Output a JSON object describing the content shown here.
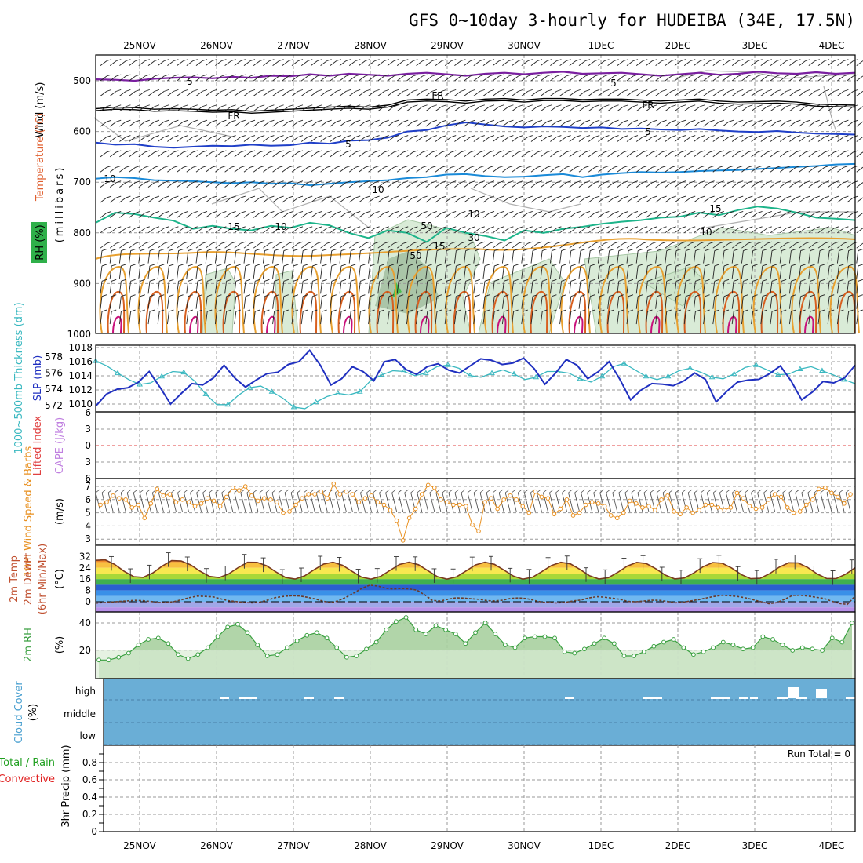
{
  "title": "GFS 0~10day 3-hourly for HUDEIBA (34E, 17.5N)",
  "colors": {
    "frame": "#000000",
    "grid": "#9a9a9a",
    "purple": "#7a1fa0",
    "blue": "#1f3fc8",
    "sky": "#1a8ad8",
    "teal": "#1db48a",
    "orange": "#e8a030",
    "dark_orange": "#d86020",
    "magenta": "#c8107a",
    "rh_fill": "#c9e2c6",
    "rh_dark": "#8aab88",
    "cyan": "#3ab8c0",
    "navy": "#2030c0",
    "lifted": "#e04040",
    "wind_orange": "#e89020",
    "temp_brown": "#7a3a20",
    "rh2m_green": "#3aa040",
    "cloud_blue": "#6aaed6",
    "precip_red": "#e02020",
    "precip_green": "#20a020"
  },
  "chart_data": {
    "type": "line",
    "title": "GFS 0~10day 3-hourly for HUDEIBA (34E, 17.5N)",
    "x_dates": [
      "25NOV",
      "26NOV",
      "27NOV",
      "28NOV",
      "29NOV",
      "30NOV",
      "1DEC",
      "2DEC",
      "3DEC",
      "4DEC"
    ],
    "panels": {
      "upper_air": {
        "ylabel_wind": "Wind (m/s)",
        "ylabel_temp": "Temperature (°C)",
        "ylabel_rh": "RH (%)",
        "ylabel_units": "(millibars)",
        "yticks": [
          "500",
          "600",
          "700",
          "800",
          "900",
          "1000"
        ],
        "contour_labels": {
          "purple_5": "5",
          "freezing": "FR",
          "blue_5": "5",
          "sky_10": "10",
          "teal_15": "15",
          "rh_50": "50",
          "rh_30": "30",
          "rh_10": "10"
        },
        "isotherm_m5_mb": [
          497,
          498,
          500,
          496,
          494,
          493,
          495,
          492,
          494,
          490,
          491,
          487,
          490,
          486,
          488,
          490,
          486,
          484,
          487,
          490,
          486,
          484,
          487,
          484,
          482,
          486,
          485,
          484,
          487,
          490,
          487,
          484,
          488,
          486,
          482,
          485,
          486,
          483,
          486,
          484
        ],
        "freezing_mb": [
          555,
          552,
          553,
          556,
          555,
          556,
          558,
          557,
          560,
          558,
          556,
          554,
          552,
          550,
          552,
          548,
          538,
          536,
          537,
          540,
          536,
          535,
          538,
          535,
          535,
          537,
          536,
          536,
          538,
          540,
          538,
          536,
          540,
          542,
          541,
          540,
          542,
          546,
          547,
          548
        ],
        "isotherm_5_mb": [
          622,
          626,
          625,
          630,
          632,
          630,
          628,
          629,
          626,
          628,
          627,
          622,
          624,
          618,
          617,
          612,
          600,
          597,
          588,
          582,
          586,
          590,
          592,
          590,
          591,
          593,
          592,
          595,
          594,
          596,
          597,
          595,
          598,
          600,
          601,
          599,
          602,
          604,
          605,
          606
        ],
        "isotherm_10_mb": [
          693,
          690,
          692,
          696,
          697,
          698,
          700,
          702,
          700,
          703,
          702,
          706,
          703,
          700,
          698,
          696,
          692,
          690,
          685,
          684,
          688,
          690,
          689,
          686,
          684,
          690,
          685,
          682,
          680,
          681,
          680,
          678,
          677,
          676,
          674,
          672,
          670,
          668,
          665,
          664
        ],
        "isotherm_15_mb": [
          780,
          760,
          763,
          770,
          776,
          792,
          786,
          792,
          795,
          786,
          790,
          780,
          785,
          800,
          810,
          795,
          800,
          818,
          790,
          800,
          806,
          815,
          795,
          800,
          792,
          788,
          782,
          778,
          775,
          770,
          768,
          760,
          765,
          755,
          748,
          752,
          760,
          770,
          772,
          775
        ]
      },
      "thickness_slp": {
        "ylabel_thickness": "1000~500mb Thickness (dm)",
        "ylabel_slp": "SLP (mb)",
        "thickness_ticks": [
          "578",
          "576",
          "574",
          "572"
        ],
        "slp_ticks": [
          "1018",
          "1016",
          "1014",
          "1012",
          "1010"
        ],
        "thickness_dm": [
          577.5,
          576.9,
          576.0,
          575.2,
          574.6,
          574.8,
          575.6,
          576.2,
          576.1,
          575.0,
          573.4,
          572.1,
          572.1,
          573.3,
          574.2,
          574.4,
          573.7,
          572.9,
          571.8,
          571.6,
          572.4,
          573.1,
          573.5,
          573.3,
          573.7,
          575.1,
          575.8,
          576.3,
          576.2,
          575.7,
          576.0,
          576.8,
          577.0,
          576.6,
          575.7,
          575.5,
          576.0,
          576.4,
          575.9,
          575.2,
          575.5,
          576.2,
          576.2,
          576.0,
          575.3,
          574.9,
          575.6,
          576.8,
          577.2,
          576.4,
          575.6,
          575.2,
          575.6,
          576.3,
          576.6,
          576.1,
          575.5,
          575.3,
          575.9,
          576.7,
          577.0,
          576.4,
          575.8,
          575.9,
          576.5,
          576.8,
          576.3,
          575.8,
          575.2,
          574.7
        ],
        "slp_mb": [
          1009.7,
          1011.4,
          1012.1,
          1012.3,
          1013.1,
          1014.6,
          1012.4,
          1010.0,
          1011.5,
          1012.9,
          1012.7,
          1013.7,
          1015.5,
          1013.7,
          1012.4,
          1013.4,
          1014.3,
          1014.5,
          1015.6,
          1016.0,
          1017.6,
          1015.5,
          1012.7,
          1013.6,
          1015.3,
          1014.6,
          1013.3,
          1016.0,
          1016.3,
          1014.9,
          1014.2,
          1015.3,
          1015.7,
          1014.8,
          1014.4,
          1015.4,
          1016.4,
          1016.2,
          1015.6,
          1015.8,
          1016.5,
          1015.0,
          1012.8,
          1014.4,
          1016.3,
          1015.5,
          1013.6,
          1014.6,
          1016.0,
          1013.5,
          1010.6,
          1012.0,
          1012.9,
          1012.8,
          1012.6,
          1013.3,
          1014.4,
          1013.5,
          1010.3,
          1011.8,
          1013.1,
          1013.4,
          1013.5,
          1014.3,
          1015.4,
          1013.3,
          1010.6,
          1011.7,
          1013.2,
          1013.0,
          1013.7,
          1015.5
        ]
      },
      "stability": {
        "ylabel_lifted": "Lifted Index",
        "ylabel_cape": "CAPE (J/kg)",
        "yticks": [
          "6",
          "3",
          "0",
          "3",
          "6"
        ]
      },
      "wind10m": {
        "ylabel": "10m Wind Speed & Barbs",
        "ylabel_units": "(m/s)",
        "yticks": [
          "7",
          "6",
          "5",
          "4",
          "3"
        ],
        "speed_ms": [
          5.6,
          5.8,
          6.3,
          6.1,
          6.0,
          5.4,
          5.6,
          4.6,
          5.7,
          6.8,
          6.3,
          6.4,
          5.8,
          6.0,
          5.8,
          5.5,
          5.7,
          6.1,
          5.9,
          5.5,
          6.2,
          6.9,
          6.7,
          7.0,
          6.3,
          5.9,
          6.1,
          6.0,
          5.8,
          5.0,
          5.1,
          5.6,
          6.1,
          6.4,
          6.4,
          6.6,
          6.1,
          7.2,
          6.4,
          6.6,
          6.4,
          5.8,
          6.1,
          6.3,
          5.8,
          5.6,
          5.2,
          4.4,
          2.9,
          4.6,
          5.3,
          6.4,
          7.1,
          6.9,
          6.0,
          5.8,
          5.6,
          5.6,
          5.5,
          4.1,
          3.6,
          5.8,
          6.1,
          5.3,
          6.0,
          6.3,
          6.0,
          5.5,
          5.0,
          6.6,
          6.2,
          6.1,
          4.9,
          5.3,
          6.0,
          4.8,
          5.0,
          5.6,
          5.8,
          5.7,
          5.5,
          4.8,
          4.6,
          5.0,
          5.9,
          5.7,
          5.4,
          5.5,
          5.2,
          6.0,
          6.3,
          5.1,
          4.9,
          5.4,
          5.0,
          5.2,
          5.6,
          5.6,
          5.4,
          5.2,
          5.4,
          6.5,
          6.1,
          5.5,
          5.3,
          5.4,
          6.0,
          6.4,
          6.2,
          5.4,
          5.0,
          5.1,
          5.6,
          6.0,
          6.8,
          6.9,
          6.5,
          6.2,
          5.7,
          6.4
        ]
      },
      "temperature": {
        "ylabel_temp": "2m Temp",
        "ylabel_dewpt": "2m DewPt",
        "ylabel_minmax": "(6hr Min/Max)",
        "ylabel_units": "(°C)",
        "yticks": [
          "32",
          "24",
          "16",
          "8",
          "0"
        ],
        "cycle_max_c": [
          30,
          29,
          28,
          28,
          28,
          28,
          28,
          28,
          28,
          28
        ],
        "cycle_min_c": [
          17,
          17,
          16,
          16,
          16,
          16,
          16,
          16,
          16,
          16
        ],
        "dewpoint_c": [
          -1,
          -0.6,
          -0.3,
          0.2,
          0.6,
          1.0,
          0.8,
          0.2,
          -0.5,
          -0.6,
          0.1,
          1.5,
          3.0,
          4.0,
          3.8,
          3.5,
          2.0,
          0.7,
          0.1,
          -0.6,
          -0.8,
          -0.2,
          1.2,
          3.0,
          3.8,
          4.3,
          4.1,
          3.2,
          2.0,
          0.5,
          -0.8,
          0.7,
          3.3,
          6.3,
          9.5,
          11.8,
          11.1,
          9.6,
          9.0,
          9.4,
          9.1,
          8.2,
          5.0,
          1.0,
          0.5,
          1.8,
          2.8,
          2.6,
          2.1,
          1.7,
          0.8,
          0.6,
          1.1,
          2.4,
          2.7,
          2.3,
          1.0,
          -0.3,
          -0.5,
          -0.9,
          -0.4,
          0.6,
          1.2,
          2.7,
          3.6,
          3.2,
          2.5,
          1.7,
          0.2,
          0.0,
          0.5,
          1.1,
          1.0,
          0.2,
          -0.7,
          -0.4,
          0.6,
          1.5,
          2.7,
          3.8,
          4.6,
          4.3,
          3.7,
          2.8,
          1.4,
          0.0,
          -1.4,
          -0.6,
          1.8,
          4.5,
          4.6,
          4.0,
          3.2,
          2.4,
          0.4,
          -1.2,
          -1.9,
          4.0
        ]
      },
      "rh2m": {
        "ylabel": "2m RH",
        "ylabel_units": "(%)",
        "yticks": [
          "40",
          "20"
        ],
        "rh_pct": [
          13,
          13,
          15,
          18,
          24,
          28,
          29,
          25,
          17,
          14,
          17,
          22,
          30,
          37,
          39,
          33,
          24,
          16,
          17,
          22,
          27,
          31,
          33,
          29,
          22,
          15,
          16,
          21,
          26,
          35,
          41,
          44,
          35,
          32,
          38,
          35,
          32,
          25,
          33,
          40,
          32,
          24,
          22,
          29,
          30,
          30,
          29,
          19,
          18,
          21,
          25,
          29,
          25,
          16,
          16,
          19,
          23,
          26,
          28,
          22,
          17,
          19,
          22,
          26,
          24,
          21,
          22,
          30,
          28,
          24,
          20,
          22,
          21,
          20,
          29,
          26,
          40
        ]
      },
      "cloud": {
        "ylabel": "Cloud Cover",
        "ylabel_units": "(%)",
        "levels": [
          "high",
          "middle",
          "low"
        ]
      },
      "precip": {
        "ylabel_total": "Total / Rain",
        "ylabel_conv": "Convective",
        "ylabel_units": "3hr Precip (mm)",
        "yticks": [
          "0.8",
          "0.6",
          "0.4",
          "0.2",
          "0"
        ],
        "run_total_text": "Run Total = 0"
      }
    }
  }
}
